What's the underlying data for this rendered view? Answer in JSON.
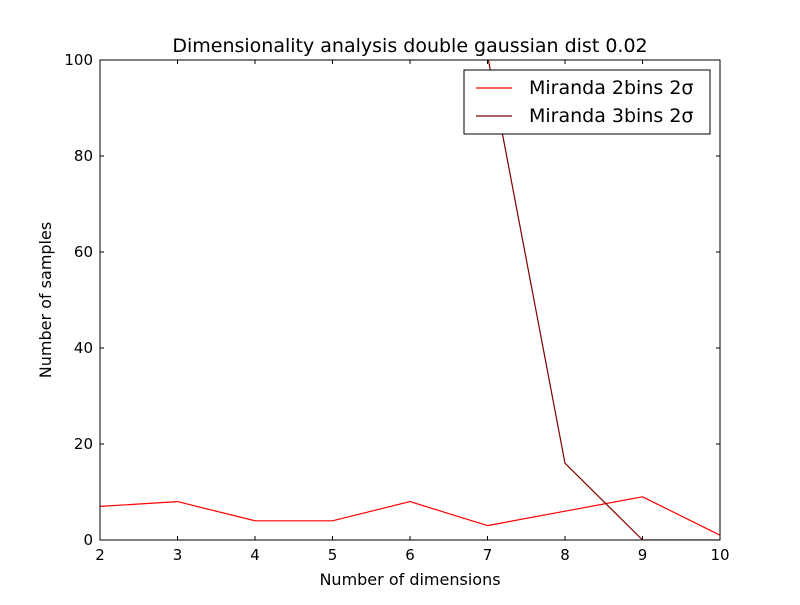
{
  "chart_data": {
    "type": "line",
    "title": "Dimensionality analysis double gaussian dist 0.02",
    "xlabel": "Number of dimensions",
    "ylabel": "Number of samples",
    "xlim": [
      2,
      10
    ],
    "ylim": [
      0,
      100
    ],
    "x_ticks": [
      2,
      3,
      4,
      5,
      6,
      7,
      8,
      9,
      10
    ],
    "y_ticks": [
      0,
      20,
      40,
      60,
      80,
      100
    ],
    "grid": false,
    "legend_position": "top-right",
    "series": [
      {
        "name": "Miranda 2bins 2σ",
        "color": "#ff0000",
        "x": [
          2,
          3,
          4,
          5,
          6,
          7,
          8,
          9,
          10
        ],
        "y": [
          7,
          8,
          4,
          4,
          8,
          3,
          6,
          9,
          1
        ]
      },
      {
        "name": "Miranda 3bins 2σ",
        "color": "#800000",
        "x": [
          7,
          8,
          9,
          10
        ],
        "y": [
          101,
          16,
          0,
          0
        ]
      }
    ]
  }
}
